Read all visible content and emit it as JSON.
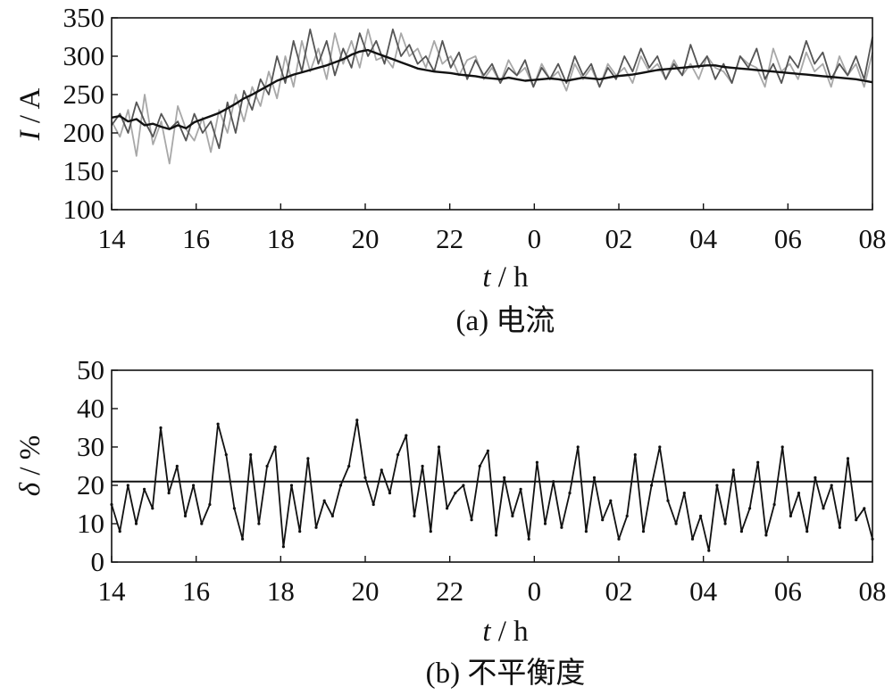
{
  "chart_data": [
    {
      "type": "line",
      "caption": "(a)  电流",
      "xlabel": {
        "var": "t",
        "unit": " / h"
      },
      "ylabel": {
        "var": "I",
        "unit": " / A"
      },
      "x_tick_labels": [
        "14",
        "16",
        "18",
        "20",
        "22",
        "0",
        "02",
        "04",
        "06",
        "08"
      ],
      "x_range_hours": [
        14,
        32
      ],
      "ylim": [
        100,
        350
      ],
      "y_ticks": [
        100,
        150,
        200,
        250,
        300,
        350
      ],
      "grid": false,
      "series": [
        {
          "color": "#a8a8a8",
          "values": [
            215,
            195,
            230,
            170,
            250,
            185,
            215,
            160,
            235,
            205,
            190,
            220,
            175,
            230,
            200,
            250,
            215,
            260,
            235,
            280,
            245,
            300,
            260,
            320,
            280,
            310,
            270,
            330,
            290,
            320,
            285,
            335,
            295,
            300,
            285,
            330,
            300,
            310,
            285,
            320,
            290,
            300,
            275,
            295,
            300,
            270,
            285,
            265,
            295,
            275,
            285,
            260,
            290,
            270,
            280,
            255,
            290,
            270,
            285,
            260,
            290,
            275,
            285,
            265,
            300,
            280,
            290,
            270,
            295,
            275,
            290,
            270,
            300,
            285,
            280,
            265,
            300,
            290,
            285,
            260,
            310,
            280,
            290,
            270,
            305,
            280,
            290,
            260,
            300,
            275,
            290,
            260,
            305
          ]
        },
        {
          "color": "#555555",
          "values": [
            210,
            225,
            200,
            240,
            215,
            195,
            225,
            205,
            215,
            190,
            225,
            200,
            215,
            180,
            240,
            200,
            255,
            230,
            270,
            250,
            300,
            265,
            320,
            280,
            335,
            290,
            320,
            275,
            310,
            285,
            330,
            300,
            320,
            290,
            335,
            300,
            315,
            290,
            300,
            280,
            320,
            285,
            305,
            270,
            295,
            275,
            290,
            265,
            285,
            275,
            295,
            260,
            285,
            270,
            290,
            265,
            300,
            275,
            290,
            260,
            285,
            270,
            300,
            280,
            310,
            285,
            300,
            270,
            290,
            275,
            315,
            285,
            300,
            270,
            290,
            265,
            300,
            285,
            310,
            270,
            290,
            265,
            300,
            285,
            320,
            290,
            305,
            270,
            290,
            275,
            300,
            270,
            325
          ]
        },
        {
          "color": "#111111",
          "values": [
            220,
            222,
            215,
            218,
            210,
            212,
            208,
            205,
            210,
            206,
            214,
            218,
            222,
            226,
            232,
            238,
            245,
            250,
            256,
            262,
            268,
            272,
            276,
            279,
            282,
            285,
            288,
            292,
            296,
            302,
            306,
            308,
            304,
            300,
            296,
            292,
            288,
            284,
            282,
            280,
            279,
            278,
            276,
            275,
            274,
            272,
            271,
            270,
            272,
            270,
            268,
            269,
            270,
            271,
            270,
            268,
            270,
            272,
            271,
            270,
            272,
            274,
            275,
            276,
            278,
            280,
            282,
            283,
            284,
            285,
            286,
            287,
            288,
            288,
            286,
            285,
            284,
            283,
            282,
            281,
            280,
            279,
            278,
            277,
            276,
            275,
            274,
            273,
            272,
            271,
            270,
            268,
            266
          ]
        }
      ]
    },
    {
      "type": "line",
      "caption": "(b)  不平衡度",
      "xlabel": {
        "var": "t",
        "unit": " / h"
      },
      "ylabel": {
        "var": "δ",
        "unit": " / %"
      },
      "x_tick_labels": [
        "14",
        "16",
        "18",
        "20",
        "22",
        "0",
        "02",
        "04",
        "06",
        "08"
      ],
      "x_range_hours": [
        14,
        32
      ],
      "ylim": [
        0,
        50
      ],
      "y_ticks": [
        0,
        10,
        20,
        30,
        40,
        50
      ],
      "grid": false,
      "reference_line": 21,
      "series": [
        {
          "color": "#111111",
          "values": [
            15,
            8,
            20,
            10,
            19,
            14,
            35,
            18,
            25,
            12,
            20,
            10,
            15,
            36,
            28,
            14,
            6,
            28,
            10,
            25,
            30,
            4,
            20,
            8,
            27,
            9,
            16,
            12,
            20,
            25,
            37,
            22,
            15,
            24,
            18,
            28,
            33,
            12,
            25,
            8,
            30,
            14,
            18,
            20,
            11,
            25,
            29,
            7,
            22,
            12,
            19,
            6,
            26,
            10,
            21,
            9,
            18,
            30,
            8,
            22,
            11,
            16,
            6,
            12,
            28,
            8,
            20,
            30,
            16,
            10,
            18,
            6,
            12,
            3,
            20,
            10,
            24,
            8,
            14,
            26,
            7,
            15,
            30,
            12,
            18,
            8,
            22,
            14,
            20,
            9,
            27,
            11,
            14,
            6
          ]
        }
      ]
    }
  ]
}
